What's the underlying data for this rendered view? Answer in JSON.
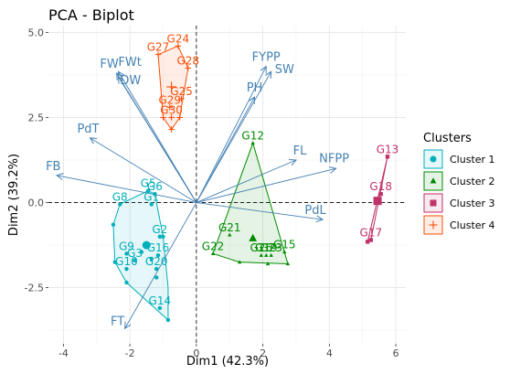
{
  "chart_data": {
    "type": "scatter",
    "title": "PCA - Biplot",
    "xlabel": "Dim1 (42.3%)",
    "ylabel": "Dim2 (39.2%)",
    "xlim": [
      -4.45,
      6.3
    ],
    "ylim": [
      -4.15,
      5.2
    ],
    "x_ticks": [
      -4,
      -2,
      0,
      2,
      4,
      6
    ],
    "x_tick_labels": [
      "-4",
      "-2",
      "0",
      "2",
      "4",
      "6"
    ],
    "y_ticks": [
      -2.5,
      0.0,
      2.5,
      5.0
    ],
    "y_tick_labels": [
      "-2.5",
      "0.0",
      "2.5",
      "5.0"
    ],
    "grid": true,
    "reference_lines": {
      "x": 0,
      "y": 0,
      "style": "dashed"
    },
    "legend": {
      "title": "Clusters",
      "position": "right"
    },
    "variables": [
      {
        "name": "FW",
        "x": -2.4,
        "y": 3.8
      },
      {
        "name": "FWt",
        "x": -2.35,
        "y": 3.85
      },
      {
        "name": "DW",
        "x": -2.35,
        "y": 3.7
      },
      {
        "name": "PdT",
        "x": -3.2,
        "y": 1.9
      },
      {
        "name": "FB",
        "x": -4.2,
        "y": 0.8
      },
      {
        "name": "FYPP",
        "x": 2.1,
        "y": 4.0
      },
      {
        "name": "SW",
        "x": 2.25,
        "y": 3.85
      },
      {
        "name": "PH",
        "x": 1.75,
        "y": 3.1
      },
      {
        "name": "FL",
        "x": 3.0,
        "y": 1.25
      },
      {
        "name": "NFPP",
        "x": 4.2,
        "y": 1.0
      },
      {
        "name": "PdL",
        "x": 3.8,
        "y": -0.5
      },
      {
        "name": "FT",
        "x": -2.15,
        "y": -3.7
      }
    ],
    "series": [
      {
        "name": "Cluster 1",
        "color": "#00AFBB",
        "marker": "circle",
        "centroid": [
          -1.5,
          -1.25
        ],
        "hull": [
          [
            -1.45,
            0.35
          ],
          [
            -1.25,
            0.25
          ],
          [
            -1.0,
            -1.0
          ],
          [
            -0.85,
            -2.5
          ],
          [
            -0.85,
            -3.45
          ],
          [
            -2.1,
            -2.35
          ],
          [
            -2.45,
            -1.75
          ],
          [
            -2.5,
            -0.65
          ],
          [
            -2.3,
            -0.05
          ]
        ],
        "points": [
          {
            "label": "G5",
            "x": -1.45,
            "y": 0.35
          },
          {
            "label": "G6",
            "x": -1.25,
            "y": 0.25
          },
          {
            "label": "G1",
            "x": -1.35,
            "y": -0.05
          },
          {
            "label": "G8",
            "x": -2.3,
            "y": -0.05
          },
          {
            "label": "G2",
            "x": -1.1,
            "y": -1.0
          },
          {
            "label": "G9",
            "x": -2.1,
            "y": -1.5
          },
          {
            "label": "G16",
            "x": -1.15,
            "y": -1.55
          },
          {
            "label": "G3",
            "x": -1.85,
            "y": -1.7
          },
          {
            "label": "G10",
            "x": -2.1,
            "y": -1.95
          },
          {
            "label": "G20",
            "x": -1.2,
            "y": -1.95
          },
          {
            "label": "G14",
            "x": -1.1,
            "y": -3.1
          },
          {
            "label": "",
            "x": -2.5,
            "y": -0.65
          },
          {
            "label": "",
            "x": -2.45,
            "y": -1.75
          },
          {
            "label": "",
            "x": -2.1,
            "y": -2.35
          },
          {
            "label": "",
            "x": -0.85,
            "y": -3.45
          },
          {
            "label": "",
            "x": -1.0,
            "y": -1.0
          },
          {
            "label": "",
            "x": -1.35,
            "y": -1.65
          },
          {
            "label": "",
            "x": -1.65,
            "y": -1.45
          },
          {
            "label": "",
            "x": -1.2,
            "y": -2.2
          }
        ]
      },
      {
        "name": "Cluster 2",
        "color": "#008B00",
        "marker": "triangle",
        "centroid": [
          1.7,
          -1.05
        ],
        "hull": [
          [
            1.7,
            1.75
          ],
          [
            2.75,
            -1.8
          ],
          [
            1.3,
            -1.75
          ],
          [
            0.5,
            -1.5
          ]
        ],
        "points": [
          {
            "label": "G12",
            "x": 1.7,
            "y": 1.75
          },
          {
            "label": "G21",
            "x": 1.0,
            "y": -0.95
          },
          {
            "label": "G22",
            "x": 0.5,
            "y": -1.5
          },
          {
            "label": "G15",
            "x": 2.65,
            "y": -1.45
          },
          {
            "label": "G23",
            "x": 2.25,
            "y": -1.55
          },
          {
            "label": "G19",
            "x": 2.1,
            "y": -1.55
          },
          {
            "label": "G26",
            "x": 1.95,
            "y": -1.55
          },
          {
            "label": "",
            "x": 2.75,
            "y": -1.8
          },
          {
            "label": "",
            "x": 1.3,
            "y": -1.75
          },
          {
            "label": "",
            "x": 2.15,
            "y": -1.8
          }
        ]
      },
      {
        "name": "Cluster 3",
        "color": "#C0326A",
        "marker": "square",
        "centroid": [
          5.45,
          0.05
        ],
        "hull": [
          [
            5.75,
            1.35
          ],
          [
            5.25,
            -1.1
          ],
          [
            5.15,
            -1.15
          ]
        ],
        "points": [
          {
            "label": "G13",
            "x": 5.75,
            "y": 1.35
          },
          {
            "label": "G18",
            "x": 5.55,
            "y": 0.25
          },
          {
            "label": "G17",
            "x": 5.25,
            "y": -1.1
          },
          {
            "label": "",
            "x": 5.15,
            "y": -1.15
          }
        ]
      },
      {
        "name": "Cluster 4",
        "color": "#FC4E07",
        "marker": "cross",
        "centroid": [
          -0.75,
          3.4
        ],
        "hull": [
          [
            -0.55,
            4.6
          ],
          [
            -0.25,
            3.95
          ],
          [
            -0.5,
            2.5
          ],
          [
            -0.75,
            2.15
          ],
          [
            -1.0,
            2.5
          ],
          [
            -1.15,
            4.35
          ]
        ],
        "points": [
          {
            "label": "G24",
            "x": -0.55,
            "y": 4.6
          },
          {
            "label": "G27",
            "x": -1.15,
            "y": 4.35
          },
          {
            "label": "G28",
            "x": -0.25,
            "y": 3.95
          },
          {
            "label": "G25",
            "x": -0.45,
            "y": 3.05
          },
          {
            "label": "G29",
            "x": -0.8,
            "y": 2.8
          },
          {
            "label": "G30",
            "x": -0.75,
            "y": 2.5
          },
          {
            "label": "",
            "x": -0.5,
            "y": 2.5
          },
          {
            "label": "",
            "x": -0.75,
            "y": 2.15
          },
          {
            "label": "",
            "x": -1.0,
            "y": 2.5
          }
        ]
      }
    ]
  }
}
